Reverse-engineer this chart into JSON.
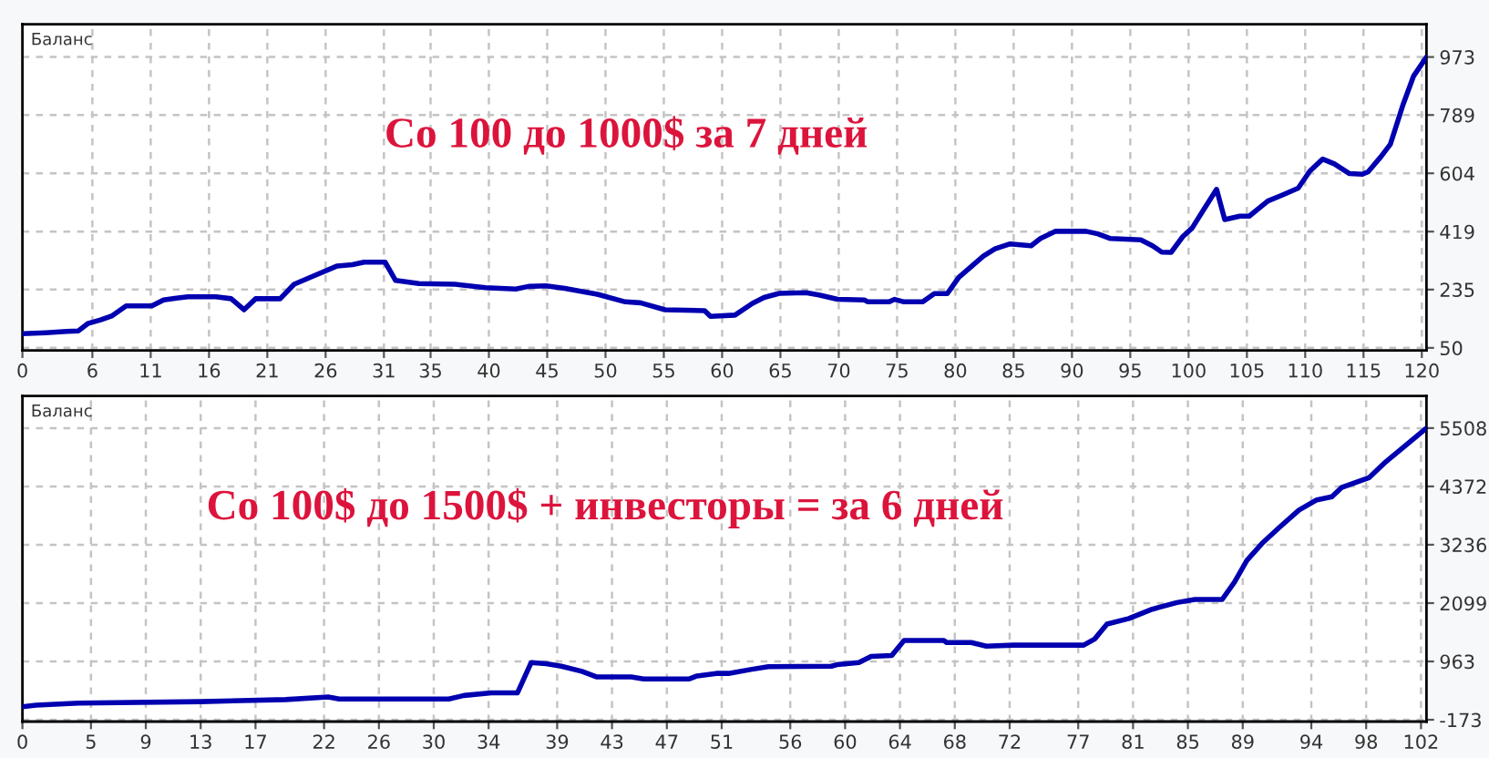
{
  "chart_data": [
    {
      "type": "line",
      "title": "Баланс",
      "annotations": [
        "Со 100 до 1000$ за 7 дней"
      ],
      "color": "#0000b0",
      "grid": true,
      "x": [
        0,
        2,
        3.8,
        4.8,
        5.6,
        6.7,
        7.7,
        8.9,
        11.1,
        12.1,
        13.2,
        14.2,
        16.6,
        17.9,
        19.0,
        20.0,
        22.1,
        23.3,
        24.9,
        27.0,
        28.3,
        29.3,
        31.1,
        32.0,
        34.0,
        37.1,
        39.7,
        42.3,
        43.4,
        44.9,
        46.5,
        48.0,
        49.3,
        51.7,
        53.0,
        55.1,
        58.5,
        59.0,
        61.1,
        62.6,
        63.6,
        64.9,
        67.2,
        68.3,
        69.9,
        72.2,
        72.5,
        74.3,
        74.8,
        75.6,
        77.2,
        78.2,
        79.3,
        80.3,
        82.4,
        83.4,
        84.7,
        86.5,
        87.3,
        88.6,
        91.2,
        92.2,
        93.3,
        95.9,
        96.9,
        97.7,
        98.5,
        99.5,
        100.3,
        101.3,
        102.4,
        103.1,
        104.4,
        105.2,
        106.8,
        108.1,
        109.4,
        110.4,
        111.5,
        112.5,
        113.8,
        114.9,
        115.4,
        116.5,
        117.3,
        118.4,
        119.3,
        120.4
      ],
      "values": [
        95,
        98,
        102,
        104,
        127,
        139,
        152,
        183,
        183,
        202,
        208,
        212,
        212,
        206,
        171,
        206,
        206,
        252,
        277,
        310,
        314,
        322,
        322,
        264,
        254,
        252,
        241,
        237,
        245,
        247,
        239,
        229,
        220,
        196,
        193,
        171,
        168,
        150,
        154,
        191,
        210,
        223,
        225,
        218,
        204,
        202,
        196,
        196,
        204,
        196,
        196,
        222,
        222,
        274,
        341,
        364,
        380,
        374,
        397,
        420,
        420,
        412,
        397,
        393,
        374,
        354,
        353,
        403,
        430,
        489,
        553,
        457,
        468,
        468,
        516,
        536,
        557,
        611,
        649,
        634,
        603,
        601,
        609,
        657,
        696,
        823,
        913,
        973
      ],
      "xlim": [
        0,
        120.4
      ],
      "xticks": [
        0,
        6,
        11,
        16,
        21,
        26,
        31,
        35,
        40,
        45,
        50,
        55,
        60,
        65,
        70,
        75,
        80,
        85,
        90,
        95,
        100,
        105,
        110,
        115,
        120
      ],
      "ylim": [
        42,
        1077
      ],
      "yticks": [
        50,
        235,
        419,
        604,
        789,
        973
      ]
    },
    {
      "type": "line",
      "title": "Баланс",
      "annotations": [
        "Со 100$ до 1500$ + инвесторы = за 6 дней"
      ],
      "color": "#0000b0",
      "grid": true,
      "x": [
        0,
        1.0,
        4.1,
        13.0,
        19.2,
        22.3,
        23.1,
        31.1,
        32.2,
        34.2,
        36.1,
        37.1,
        38.2,
        39.3,
        40.8,
        41.9,
        44.4,
        45.3,
        48.6,
        49.2,
        50.6,
        51.5,
        53.2,
        54.4,
        59.0,
        59.4,
        61.0,
        61.9,
        63.4,
        64.3,
        67.2,
        67.4,
        69.2,
        70.3,
        72.3,
        77.4,
        78.2,
        79.1,
        80.7,
        82.4,
        84.2,
        85.5,
        87.5,
        88.4,
        89.3,
        90.4,
        91.7,
        93.1,
        94.4,
        95.5,
        96.2,
        98.2,
        99.3,
        100.1,
        102.4
      ],
      "values": [
        80,
        110,
        150,
        180,
        220,
        270,
        230,
        230,
        300,
        350,
        350,
        940,
        920,
        870,
        770,
        660,
        660,
        620,
        620,
        680,
        730,
        730,
        810,
        860,
        870,
        900,
        940,
        1060,
        1080,
        1370,
        1370,
        1330,
        1330,
        1260,
        1280,
        1280,
        1400,
        1690,
        1800,
        1980,
        2110,
        2170,
        2170,
        2510,
        2930,
        3260,
        3580,
        3910,
        4110,
        4170,
        4350,
        4540,
        4820,
        5000,
        5508
      ],
      "xlim": [
        0,
        102.4
      ],
      "xticks": [
        0,
        5,
        9,
        13,
        17,
        22,
        26,
        30,
        34,
        39,
        43,
        47,
        51,
        56,
        60,
        64,
        68,
        72,
        77,
        81,
        85,
        89,
        94,
        98,
        102
      ],
      "ylim": [
        -208,
        6134
      ],
      "yticks": [
        -173,
        963,
        2099,
        3236,
        4372,
        5508
      ]
    }
  ]
}
